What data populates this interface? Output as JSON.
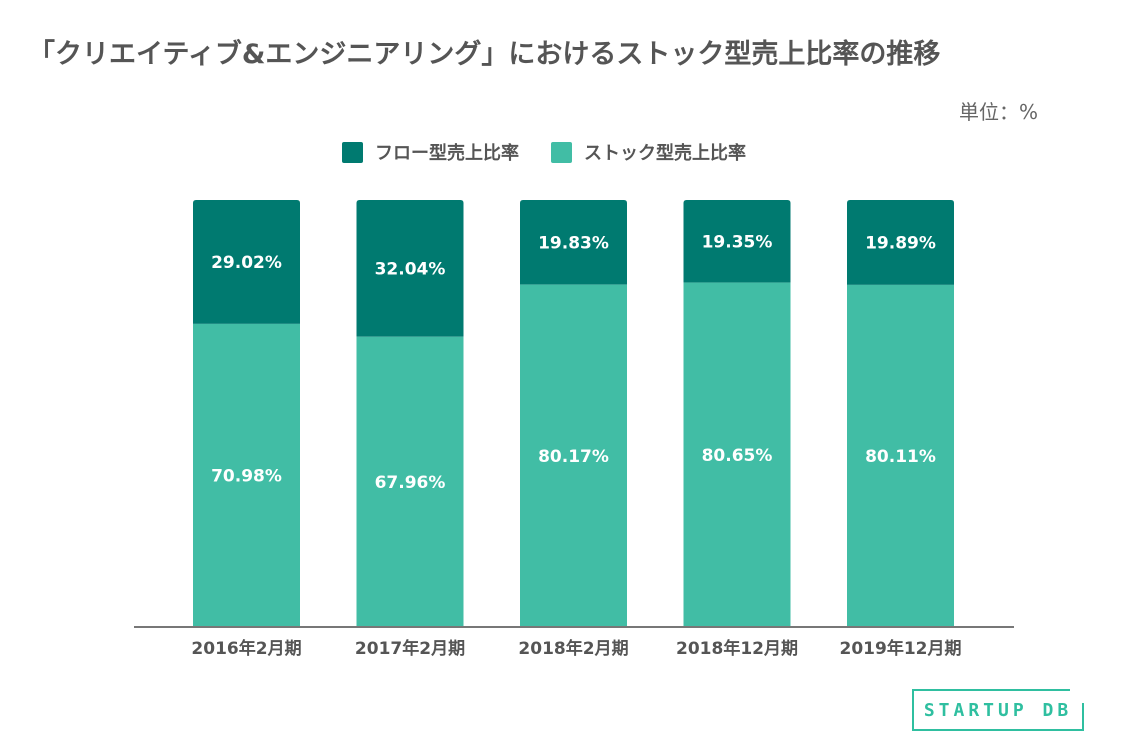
{
  "colors": {
    "flow": "#007a70",
    "stock": "#41bda5",
    "axis": "#777777",
    "logo": "#2fbfa0"
  },
  "chart_data": {
    "type": "bar",
    "stacked": true,
    "title": "「クリエイティブ&エンジニアリング」におけるストック型売上比率の推移",
    "unit_label": "単位：%",
    "categories": [
      "2016年2月期",
      "2017年2月期",
      "2018年2月期",
      "2018年12月期",
      "2019年12月期"
    ],
    "series": [
      {
        "name": "フロー型売上比率",
        "values": [
          29.02,
          32.04,
          19.83,
          19.35,
          19.89
        ],
        "labels": [
          "29.02%",
          "32.04%",
          "19.83%",
          "19.35%",
          "19.89%"
        ]
      },
      {
        "name": "ストック型売上比率",
        "values": [
          70.98,
          67.96,
          80.17,
          80.65,
          80.11
        ],
        "labels": [
          "70.98%",
          "67.96%",
          "80.17%",
          "80.65%",
          "80.11%"
        ]
      }
    ],
    "ylim": [
      0,
      100
    ],
    "legend_position": "top"
  },
  "logo": {
    "text": "STARTUP DB"
  }
}
